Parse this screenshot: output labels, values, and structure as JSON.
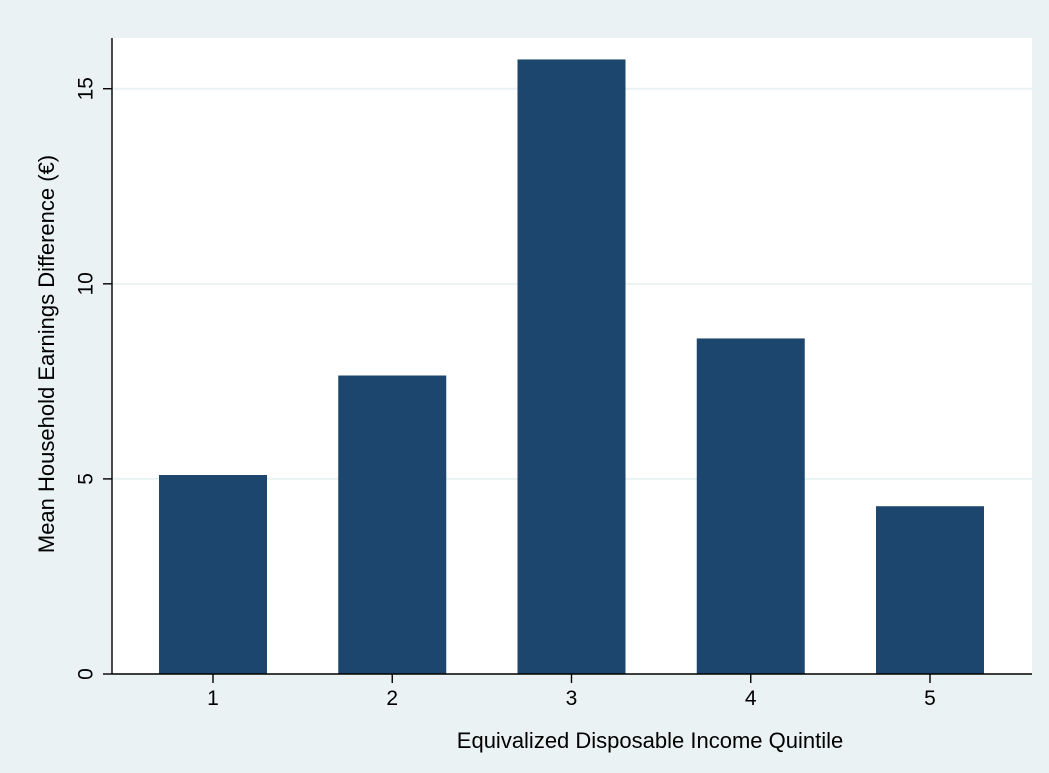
{
  "chart_data": {
    "type": "bar",
    "title": "",
    "xlabel": "Equivalized Disposable Income Quintile",
    "ylabel": "Mean Household Earnings Difference (€)",
    "categories": [
      "1",
      "2",
      "3",
      "4",
      "5"
    ],
    "values": [
      5.1,
      7.65,
      15.75,
      8.6,
      4.3
    ],
    "ylim": [
      0,
      16.3
    ],
    "yticks": [
      "0",
      "5",
      "10",
      "15"
    ],
    "grid": true,
    "legend": "none",
    "colors": {
      "bar": "#1c466d",
      "outer_background": "#eaf2f3",
      "plot_background": "#ffffff",
      "grid": "#eaf2f3",
      "axis": "#000000"
    }
  }
}
